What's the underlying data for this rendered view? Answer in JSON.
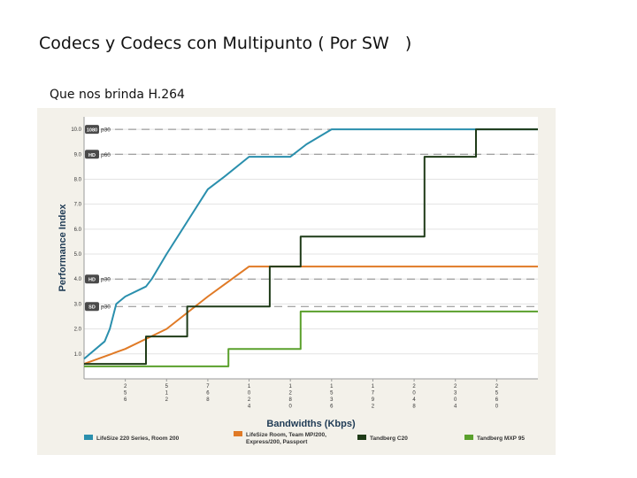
{
  "slide": {
    "title": "Codecs y Codecs con Multipunto ( Por SW   )",
    "subtitle": "Que nos brinda  H.264"
  },
  "chart_data": {
    "type": "line",
    "ylabel": "Performance Index",
    "xlabel": "Bandwidths (Kbps)",
    "ylim": [
      0,
      10.5
    ],
    "y_ticks": [
      "1.0",
      "2.0",
      "3.0",
      "4.0",
      "5.0",
      "6.0",
      "7.0",
      "8.0",
      "9.0",
      "10.0"
    ],
    "x_ticks": [
      "256",
      "512",
      "768",
      "1024",
      "1280",
      "1536",
      "1792",
      "2048",
      "2304",
      "2560"
    ],
    "xlim": [
      0,
      2816
    ],
    "reference_lines": [
      {
        "y": 10.0,
        "badge": "1080",
        "label": "p30"
      },
      {
        "y": 9.0,
        "badge": "HD",
        "label": "p60"
      },
      {
        "y": 4.0,
        "badge": "HD",
        "label": "p30"
      },
      {
        "y": 2.9,
        "badge": "SD",
        "label": "p30"
      }
    ],
    "series": [
      {
        "name": "LifeSize 220 Series, Room 200",
        "color": "#2a8fad",
        "points": [
          [
            0,
            0.8
          ],
          [
            128,
            1.5
          ],
          [
            160,
            2.0
          ],
          [
            200,
            3.0
          ],
          [
            256,
            3.3
          ],
          [
            384,
            3.7
          ],
          [
            420,
            4.0
          ],
          [
            512,
            5.0
          ],
          [
            640,
            6.3
          ],
          [
            768,
            7.6
          ],
          [
            870,
            8.1
          ],
          [
            1024,
            8.9
          ],
          [
            1280,
            8.9
          ],
          [
            1380,
            9.4
          ],
          [
            1536,
            10.0
          ],
          [
            2816,
            10.0
          ]
        ]
      },
      {
        "name": "LifeSize Room, Team MP/200, Express/200, Passport",
        "color": "#e07a26",
        "points": [
          [
            0,
            0.6
          ],
          [
            256,
            1.2
          ],
          [
            400,
            1.65
          ],
          [
            512,
            2.0
          ],
          [
            768,
            3.3
          ],
          [
            1024,
            4.5
          ],
          [
            2816,
            4.5
          ]
        ]
      },
      {
        "name": "Tandberg C20",
        "color": "#1f3b18",
        "points": [
          [
            0,
            0.6
          ],
          [
            384,
            0.6
          ],
          [
            384,
            1.7
          ],
          [
            640,
            1.7
          ],
          [
            640,
            2.9
          ],
          [
            1152,
            2.9
          ],
          [
            1152,
            4.5
          ],
          [
            1344,
            4.5
          ],
          [
            1344,
            5.7
          ],
          [
            2112,
            5.7
          ],
          [
            2112,
            8.9
          ],
          [
            2432,
            8.9
          ],
          [
            2432,
            10.0
          ],
          [
            2816,
            10.0
          ]
        ]
      },
      {
        "name": "Tandberg MXP 95",
        "color": "#5aa02c",
        "points": [
          [
            0,
            0.5
          ],
          [
            896,
            0.5
          ],
          [
            896,
            1.2
          ],
          [
            1344,
            1.2
          ],
          [
            1344,
            2.7
          ],
          [
            2816,
            2.7
          ]
        ]
      }
    ],
    "legend_position": "bottom"
  }
}
